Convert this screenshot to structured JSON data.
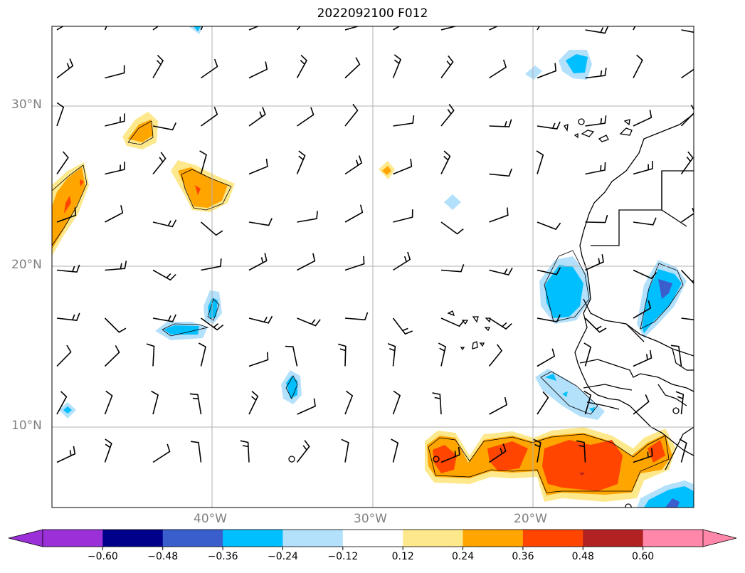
{
  "title": "2022092100 F012",
  "lat_labels": [
    "30°N",
    "20°N",
    "10°N"
  ],
  "lon_labels": [
    "40°W",
    "30°W",
    "20°W"
  ],
  "colorbar": {
    "ticks": [
      "−0.60",
      "−0.48",
      "−0.36",
      "−0.24",
      "−0.12",
      "0.12",
      "0.24",
      "0.36",
      "0.48",
      "0.60"
    ],
    "colors": [
      "#9b30d8",
      "#00008b",
      "#3a5fcd",
      "#00bfff",
      "#b3e0fb",
      "#ffffff",
      "#fde88c",
      "#ffa500",
      "#ff4500",
      "#b22222",
      "#ff88aa"
    ]
  },
  "contour_colors": {
    "neg_light": "#b3e0fb",
    "neg_mid": "#00bfff",
    "neg_dark": "#3a5fcd",
    "pos_light": "#fde88c",
    "pos_mid": "#ffa500",
    "pos_dark": "#ff4500",
    "pos_max": "#b22222"
  }
}
